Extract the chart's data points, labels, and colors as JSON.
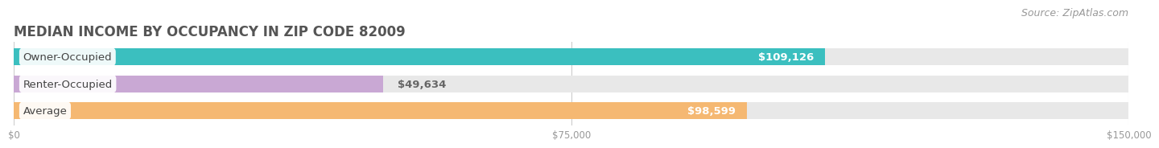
{
  "title": "MEDIAN INCOME BY OCCUPANCY IN ZIP CODE 82009",
  "source": "Source: ZipAtlas.com",
  "categories": [
    "Owner-Occupied",
    "Renter-Occupied",
    "Average"
  ],
  "values": [
    109126,
    49634,
    98599
  ],
  "bar_colors": [
    "#3bbfbf",
    "#c9a8d4",
    "#f5b872"
  ],
  "bar_bg_color": "#e8e8e8",
  "label_texts": [
    "$109,126",
    "$49,634",
    "$98,599"
  ],
  "value_inside": [
    true,
    false,
    true
  ],
  "xlim": [
    0,
    150000
  ],
  "xticks": [
    0,
    75000,
    150000
  ],
  "xtick_labels": [
    "$0",
    "$75,000",
    "$150,000"
  ],
  "title_color": "#555555",
  "title_fontsize": 12,
  "category_fontsize": 9.5,
  "value_fontsize": 9.5,
  "source_fontsize": 9,
  "source_color": "#999999",
  "bar_height": 0.62,
  "background_color": "#ffffff",
  "grid_color": "#cccccc",
  "tick_color": "#999999"
}
